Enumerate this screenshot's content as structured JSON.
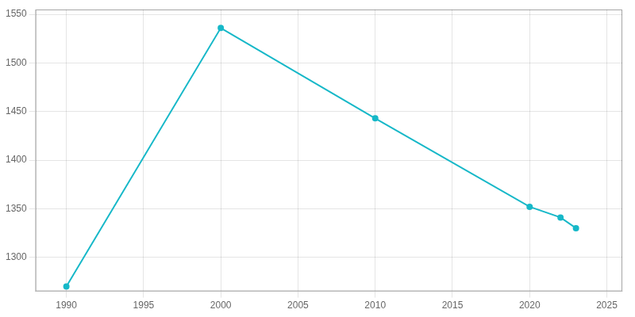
{
  "chart_data": {
    "type": "line",
    "x": [
      1990,
      2000,
      2010,
      2020,
      2022,
      2023
    ],
    "values": [
      1270,
      1536,
      1443,
      1352,
      1341,
      1330
    ],
    "color": "#17b8c8",
    "marker": "circle",
    "xlim": [
      1988,
      2026
    ],
    "ylim": [
      1265,
      1555
    ],
    "xticks": [
      1990,
      1995,
      2000,
      2005,
      2010,
      2015,
      2020,
      2025
    ],
    "yticks": [
      1300,
      1350,
      1400,
      1450,
      1500,
      1550
    ],
    "grid": true
  }
}
